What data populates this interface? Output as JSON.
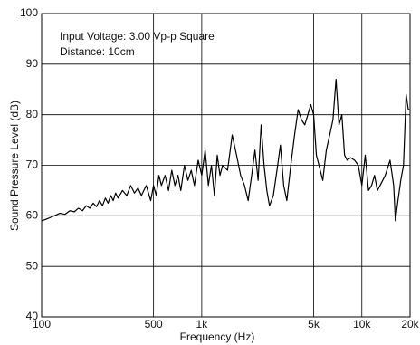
{
  "chart_data": {
    "type": "line",
    "x_label": "Frequency (Hz)",
    "y_label": "Sound Pressure Level (dB)",
    "annotations": [
      "Input Voltage: 3.00 Vp-p Square",
      "Distance: 10cm"
    ],
    "x_scale": "log",
    "grid": true,
    "xlim": [
      100,
      20000
    ],
    "ylim": [
      40,
      100
    ],
    "xticks": [
      100,
      500,
      {
        "value": 1000,
        "label": "1k"
      },
      {
        "value": 5000,
        "label": "5k"
      },
      {
        "value": 10000,
        "label": "10k"
      },
      {
        "value": 20000,
        "label": "20k"
      }
    ],
    "yticks": [
      40,
      50,
      60,
      70,
      80,
      90,
      100
    ],
    "series": [
      {
        "color": "#000000",
        "x": [
          100,
          110,
          120,
          130,
          140,
          150,
          160,
          170,
          180,
          190,
          200,
          210,
          220,
          230,
          240,
          250,
          260,
          270,
          280,
          290,
          300,
          320,
          340,
          360,
          380,
          400,
          420,
          450,
          480,
          500,
          520,
          540,
          560,
          590,
          620,
          650,
          680,
          710,
          740,
          780,
          820,
          860,
          900,
          950,
          1000,
          1050,
          1100,
          1150,
          1200,
          1250,
          1300,
          1350,
          1450,
          1550,
          1650,
          1750,
          1850,
          1950,
          2050,
          2150,
          2250,
          2350,
          2450,
          2550,
          2650,
          2800,
          2950,
          3100,
          3250,
          3400,
          3600,
          3800,
          4000,
          4200,
          4400,
          4600,
          4800,
          5000,
          5200,
          5400,
          5700,
          6000,
          6300,
          6600,
          6900,
          7200,
          7500,
          7800,
          8100,
          8500,
          9000,
          9500,
          10000,
          10500,
          11000,
          11500,
          12000,
          12500,
          13000,
          14000,
          15000,
          15800,
          16200,
          16800,
          17500,
          18200,
          18900,
          19500,
          20000
        ],
        "values": [
          59,
          59.5,
          60,
          60.5,
          60.3,
          61,
          60.8,
          61.5,
          61,
          62,
          61.5,
          62.5,
          61.8,
          63,
          62,
          63.5,
          62.5,
          64,
          63,
          64.5,
          63.5,
          65,
          64,
          66,
          64.5,
          65.5,
          64,
          66,
          63,
          66,
          64,
          68,
          66,
          68,
          65,
          69,
          66,
          68,
          65,
          70,
          67,
          69,
          66,
          71,
          68,
          73,
          66,
          70,
          64,
          72,
          68,
          70,
          69,
          76,
          72,
          68,
          66,
          63,
          68,
          73,
          67,
          78,
          70,
          65,
          62,
          64,
          69,
          74,
          66,
          63,
          70,
          76,
          81,
          79,
          78,
          80,
          82,
          80,
          72,
          70,
          67,
          73,
          76,
          79,
          87,
          78,
          80,
          72,
          71,
          71.5,
          71,
          70,
          66,
          72,
          65,
          66,
          68,
          65,
          66,
          68,
          71,
          66,
          59,
          63,
          67,
          70,
          84,
          81,
          81
        ]
      }
    ]
  }
}
